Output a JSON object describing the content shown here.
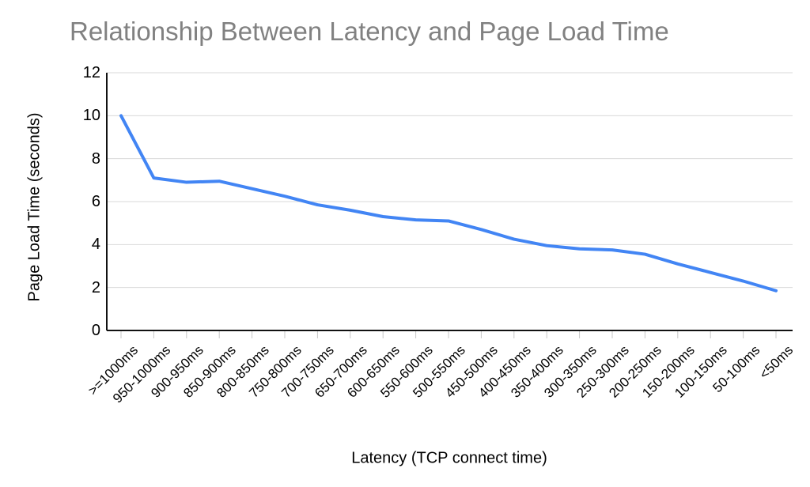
{
  "chart_data": {
    "type": "line",
    "title": "Relationship Between Latency and Page Load Time",
    "xlabel": "Latency (TCP connect time)",
    "ylabel": "Page Load Time (seconds)",
    "categories": [
      ">=1000ms",
      "950-1000ms",
      "900-950ms",
      "850-900ms",
      "800-850ms",
      "750-800ms",
      "700-750ms",
      "650-700ms",
      "600-650ms",
      "550-600ms",
      "500-550ms",
      "450-500ms",
      "400-450ms",
      "350-400ms",
      "300-350ms",
      "250-300ms",
      "200-250ms",
      "150-200ms",
      "100-150ms",
      "50-100ms",
      "<50ms"
    ],
    "values": [
      10,
      7.1,
      6.9,
      6.95,
      6.6,
      6.25,
      5.85,
      5.6,
      5.3,
      5.15,
      5.1,
      4.7,
      4.25,
      3.95,
      3.8,
      3.75,
      3.55,
      3.1,
      2.7,
      2.3,
      1.85
    ],
    "ylim": [
      0,
      12
    ],
    "yticks": [
      0,
      2,
      4,
      6,
      8,
      10,
      12
    ],
    "grid": "horizontal",
    "legend": "none",
    "colors": {
      "line": "#4285f4",
      "title_text": "#818181",
      "axis_line": "#111111",
      "gridline": "#d9d9d9",
      "tick_mark": "#c7c7c7",
      "label_text": "#000000"
    }
  }
}
